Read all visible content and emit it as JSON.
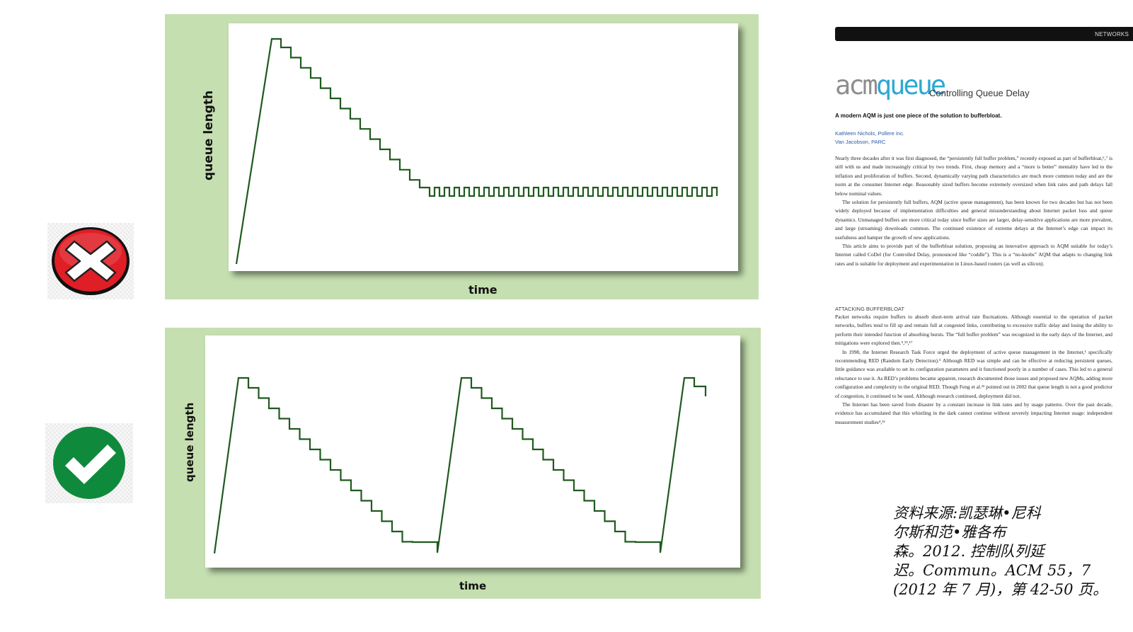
{
  "top_chart": {
    "ylabel": "queue length",
    "xlabel": "time",
    "line_color": "#1e5a1e"
  },
  "bottom_chart": {
    "ylabel": "queue length",
    "xlabel": "time",
    "line_color": "#1e5a1e"
  },
  "icons": {
    "bad": {
      "name": "x-mark-icon",
      "color": "#e01e26"
    },
    "good": {
      "name": "checkmark-icon",
      "color": "#0f8a3c"
    }
  },
  "article": {
    "section_tag": "NETWORKS",
    "masthead_acm": "acm",
    "masthead_queue": "queue",
    "title": "Controlling Queue Delay",
    "deck": "A modern AQM is just one piece of the solution to bufferbloat.",
    "authors": [
      "Kathleen Nichols, Pollere Inc.",
      "Van Jacobson, PARC"
    ],
    "paragraphs_1": [
      "Nearly three decades after it was first diagnosed, the “persistently full buffer problem,” recently exposed as part of bufferbloat,⁶,⁷ is still with us and made increasingly critical by two trends. First, cheap memory and a “more is better” mentality have led to the inflation and proliferation of buffers. Second, dynamically varying path characteristics are much more common today and are the norm at the consumer Internet edge. Reasonably sized buffers become extremely oversized when link rates and path delays fall below nominal values.",
      "The solution for persistently full buffers, AQM (active queue management), has been known for two decades but has not been widely deployed because of implementation difficulties and general misunderstanding about Internet packet loss and queue dynamics. Unmanaged buffers are more critical today since buffer sizes are larger, delay-sensitive applications are more prevalent, and large (streaming) downloads common. The continued existence of extreme delays at the Internet’s edge can impact its usefulness and hamper the growth of new applications.",
      "This article aims to provide part of the bufferbloat solution, proposing an innovative approach to AQM suitable for today’s Internet called CoDel (for Controlled Delay, pronounced like “coddle”). This is a “no-knobs” AQM that adapts to changing link rates and is suitable for deployment and experimentation in Linux-based routers (as well as silicon)."
    ],
    "section_heading": "ATTACKING BUFFERBLOAT",
    "paragraphs_2": [
      "Packet networks require buffers to absorb short-term arrival rate fluctuations. Although essential to the operation of packet networks, buffers tend to fill up and remain full at congested links, contributing to excessive traffic delay and losing the ability to perform their intended function of absorbing bursts. The “full buffer problem” was recognized in the early days of the Internet, and mitigations were explored then.⁹,¹⁵,¹⁷",
      "In 1998, the Internet Research Task Force urged the deployment of active queue management in the Internet,¹ specifically recommending RED (Random Early Detection).⁵ Although RED was simple and can be effective at reducing persistent queues, little guidance was available to set its configuration parameters and it functioned poorly in a number of cases. This led to a general reluctance to use it. As RED’s problems became apparent, research documented those issues and proposed new AQMs, adding more configuration and complexity to the original RED. Though Feng et al.²² pointed out in 2002 that queue length is not a good predictor of congestion, it continued to be used. Although research continued, deployment did not.",
      "The Internet has been saved from disaster by a constant increase in link rates and by usage patterns. Over the past decade, evidence has accumulated that this whistling in the dark cannot continue without severely impacting Internet usage: independent measurement studies⁴,¹³"
    ]
  },
  "citation": {
    "lines": [
      "资料来源:凯瑟琳•尼科",
      "尔斯和范•雅各布",
      "森。2012. 控制队列延",
      "迟。Commun。ACM 55，7",
      "(2012 年 7 月)，第 42-50 页。"
    ]
  }
}
